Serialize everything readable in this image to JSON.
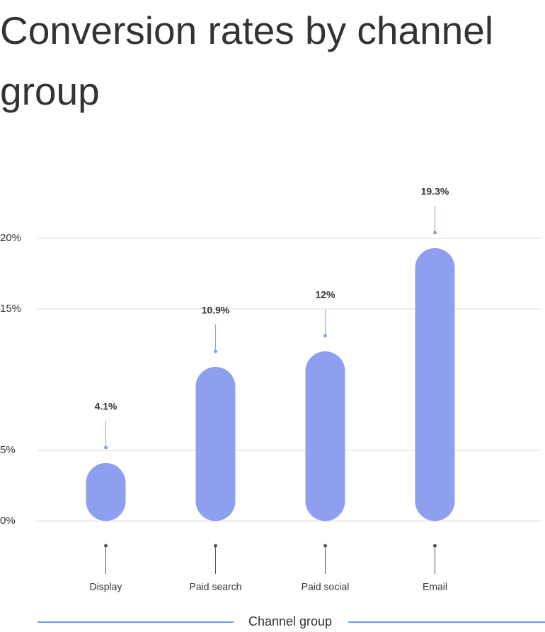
{
  "chart_data": {
    "type": "bar",
    "title": "Conversion rates by channel group",
    "categories": [
      "Display",
      "Paid search",
      "Paid social",
      "Email"
    ],
    "values": [
      4.1,
      10.9,
      12,
      19.3
    ],
    "value_labels": [
      "4.1%",
      "10.9%",
      "12%",
      "19.3%"
    ],
    "color": "#8f9fef",
    "x_label": "Channel group",
    "ylim": [
      0,
      20
    ],
    "yticks": [
      {
        "value": 0,
        "label": "0%"
      },
      {
        "value": 5,
        "label": "5%"
      },
      {
        "value": 15,
        "label": "15%"
      },
      {
        "value": 20,
        "label": "20%"
      }
    ],
    "grid": true
  }
}
